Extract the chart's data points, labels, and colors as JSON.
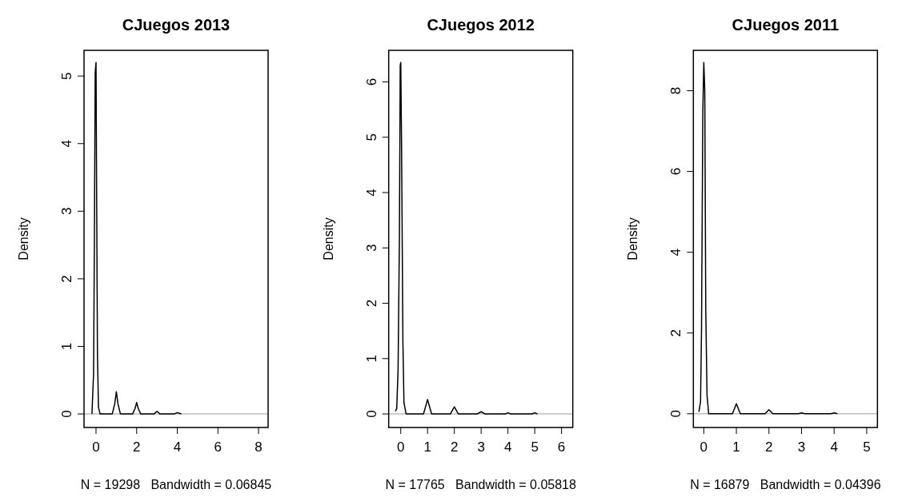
{
  "chart_data": [
    {
      "type": "line",
      "title": "CJuegos 2013",
      "xlabel": "N = 19298   Bandwidth = 0.06845",
      "ylabel": "Density",
      "xlim": [
        -0.59,
        8.47
      ],
      "ylim": [
        -0.2,
        5.38
      ],
      "xticks": [
        0,
        2,
        4,
        6,
        8
      ],
      "yticks": [
        0,
        1,
        2,
        3,
        4,
        5
      ],
      "grid": false,
      "marker": "none",
      "line_style": "solid",
      "ref_lines": [
        {
          "axis": "y",
          "value": 0,
          "color": "#bebebe"
        }
      ],
      "series": [
        {
          "color": "#000000",
          "x": [
            -0.2,
            -0.12,
            -0.08,
            -0.04,
            0,
            0.03,
            0.07,
            0.12,
            0.2,
            0.8,
            0.92,
            1,
            1.08,
            1.2,
            1.8,
            1.92,
            2,
            2.08,
            2.2,
            2.85,
            3,
            3.15,
            3.85,
            4,
            4.2
          ],
          "values": [
            0,
            0.6,
            2.6,
            5.05,
            5.2,
            3.3,
            0.9,
            0.1,
            0,
            0,
            0.15,
            0.33,
            0.15,
            0,
            0,
            0.08,
            0.17,
            0.08,
            0,
            0,
            0.04,
            0,
            0,
            0.02,
            0
          ]
        }
      ]
    },
    {
      "type": "line",
      "title": "CJuegos 2012",
      "xlabel": "N = 17765   Bandwidth = 0.05818",
      "ylabel": "Density",
      "xlim": [
        -0.45,
        6.42
      ],
      "ylim": [
        -0.245,
        6.57
      ],
      "xticks": [
        0,
        1,
        2,
        3,
        4,
        5,
        6
      ],
      "yticks": [
        0,
        1,
        2,
        3,
        4,
        5,
        6
      ],
      "grid": false,
      "marker": "none",
      "line_style": "solid",
      "ref_lines": [
        {
          "axis": "y",
          "value": 0,
          "color": "#bebebe"
        }
      ],
      "series": [
        {
          "color": "#000000",
          "x": [
            -0.2,
            -0.15,
            -0.1,
            -0.05,
            -0.02,
            0,
            0.03,
            0.08,
            0.12,
            0.2,
            0.85,
            1,
            1.15,
            1.85,
            2,
            2.15,
            2.85,
            3,
            3.15,
            3.9,
            4,
            4.1,
            4.9,
            5,
            5.1
          ],
          "values": [
            0.05,
            0.1,
            0.8,
            3.2,
            6.3,
            6.35,
            4.85,
            1.3,
            0.2,
            0,
            0,
            0.26,
            0,
            0,
            0.13,
            0,
            0,
            0.04,
            0,
            0,
            0.02,
            0,
            0,
            0.02,
            0
          ]
        }
      ]
    },
    {
      "type": "line",
      "title": "CJuegos 2011",
      "xlabel": "N = 16879   Bandwidth = 0.04396",
      "ylabel": "Density",
      "xlim": [
        -0.32,
        5.33
      ],
      "ylim": [
        -0.34,
        9.0
      ],
      "xticks": [
        0,
        1,
        2,
        3,
        4,
        5
      ],
      "yticks": [
        0,
        2,
        4,
        6,
        8
      ],
      "grid": false,
      "marker": "none",
      "line_style": "solid",
      "ref_lines": [
        {
          "axis": "y",
          "value": 0,
          "color": "#bebebe"
        }
      ],
      "series": [
        {
          "color": "#000000",
          "x": [
            -0.15,
            -0.1,
            -0.07,
            -0.03,
            0,
            0.03,
            0.06,
            0.1,
            0.15,
            0.88,
            1,
            1.12,
            1.88,
            2,
            2.12,
            2.9,
            3,
            3.1,
            3.9,
            4,
            4.1
          ],
          "values": [
            0.05,
            0.3,
            2.1,
            7.45,
            8.7,
            8.0,
            2.6,
            0.45,
            0,
            0,
            0.25,
            0,
            0,
            0.1,
            0,
            0,
            0.02,
            0,
            0,
            0.02,
            0
          ]
        }
      ]
    }
  ]
}
